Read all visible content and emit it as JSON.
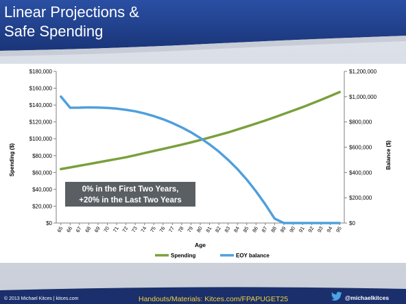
{
  "slide": {
    "title_line1": "Linear Projections &",
    "title_line2": "Safe Spending",
    "callout_line1": "0% in the First Two Years,",
    "callout_line2": "+20% in the Last Two Years",
    "copyright": "© 2013 Michael Kitces  |  kitces.com",
    "handouts": "Handouts/Materials: Kitces.com/FPAPUGET25",
    "twitter_handle": "@michaelkitces",
    "colors": {
      "title_bar": "#1f3f8c",
      "footer": "#1a2f6b",
      "handouts_text": "#f2d33a"
    }
  },
  "chart_data": {
    "type": "line",
    "xlabel": "Age",
    "ylabel": "Spending ($)",
    "y2label": "Balance ($)",
    "x": [
      65,
      66,
      67,
      68,
      69,
      70,
      71,
      72,
      73,
      74,
      75,
      76,
      77,
      78,
      79,
      80,
      81,
      82,
      83,
      84,
      85,
      86,
      87,
      88,
      89,
      90,
      91,
      92,
      93,
      94,
      95
    ],
    "ylim": [
      0,
      180000
    ],
    "y2lim": [
      0,
      1200000
    ],
    "yticks": [
      "$0",
      "$20,000",
      "$40,000",
      "$60,000",
      "$80,000",
      "$100,000",
      "$120,000",
      "$140,000",
      "$160,000",
      "$180,000"
    ],
    "y2ticks": [
      "$0",
      "$200,000",
      "$400,000",
      "$600,000",
      "$800,000",
      "$1,000,000",
      "$1,200,000"
    ],
    "legend_position": "bottom",
    "series": [
      {
        "name": "Spending",
        "axis": "left",
        "color": "#7aa03c",
        "values": [
          64000,
          66000,
          68000,
          70000,
          72000,
          74000,
          76000,
          78000,
          80500,
          83000,
          85500,
          88000,
          90500,
          93000,
          95700,
          98500,
          101500,
          104500,
          107500,
          111000,
          114500,
          118000,
          121700,
          125500,
          129500,
          133500,
          137500,
          141800,
          146200,
          150800,
          155500
        ]
      },
      {
        "name": "EOY balance",
        "axis": "right",
        "color": "#4f9fdc",
        "values": [
          1000000,
          912000,
          913000,
          915000,
          914000,
          911000,
          905000,
          896000,
          884000,
          867000,
          846000,
          821000,
          791000,
          757000,
          718000,
          673000,
          622000,
          565000,
          500000,
          427000,
          344000,
          251000,
          148000,
          35000,
          0,
          0,
          0,
          0,
          0,
          0,
          0
        ]
      }
    ]
  }
}
